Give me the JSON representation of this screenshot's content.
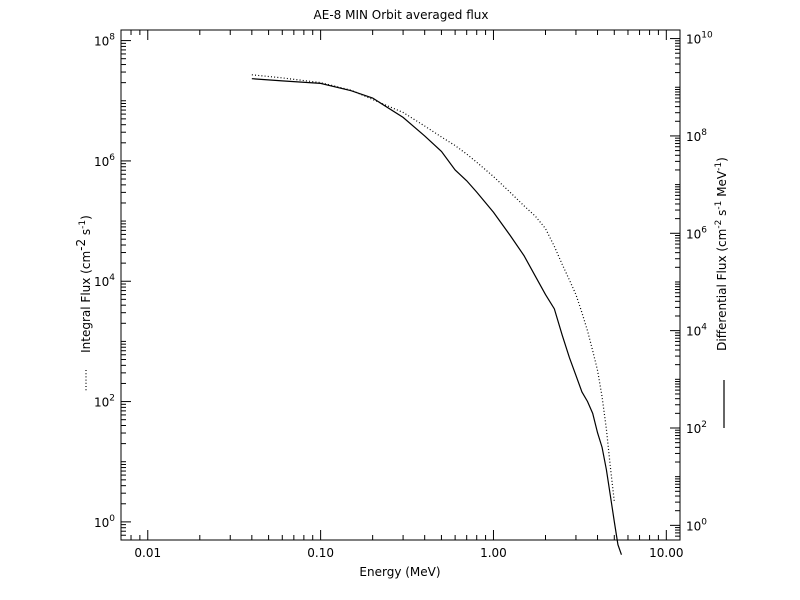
{
  "chart_data": {
    "type": "line",
    "title": "AE-8 MIN Orbit averaged flux",
    "xlabel": "Energy (MeV)",
    "ylabel_left": "Integral Flux (cm",
    "ylabel_left_unit": "-2",
    "ylabel_left_mid": " s",
    "ylabel_left_unit2": "-1",
    "ylabel_left_end": ")",
    "ylabel_right": "Differential Flux (cm",
    "ylabel_right_unit": "-2",
    "ylabel_right_mid": " s",
    "ylabel_right_unit2": "-1",
    "ylabel_right_mid2": " MeV",
    "ylabel_right_unit3": "-1",
    "ylabel_right_end": ")",
    "xscale": "log",
    "yscale_left": "log",
    "yscale_right": "log",
    "xlim": [
      0.007,
      12.0
    ],
    "ylim_left": [
      0.5,
      150000000.0
    ],
    "ylim_right": [
      0.5,
      15000000000.0
    ],
    "x_ticks": [
      {
        "value": 0.01,
        "label": "0.01"
      },
      {
        "value": 0.1,
        "label": "0.10"
      },
      {
        "value": 1,
        "label": "1.00"
      },
      {
        "value": 10,
        "label": "10.00"
      }
    ],
    "y_left_ticks": [
      {
        "value": 1,
        "base": "10",
        "exp": "0"
      },
      {
        "value": 100,
        "base": "10",
        "exp": "2"
      },
      {
        "value": 10000,
        "base": "10",
        "exp": "4"
      },
      {
        "value": 1000000,
        "base": "10",
        "exp": "6"
      },
      {
        "value": 100000000,
        "base": "10",
        "exp": "8"
      }
    ],
    "y_right_ticks": [
      {
        "value": 1,
        "base": "10",
        "exp": "0"
      },
      {
        "value": 100,
        "base": "10",
        "exp": "2"
      },
      {
        "value": 10000,
        "base": "10",
        "exp": "4"
      },
      {
        "value": 1000000,
        "base": "10",
        "exp": "6"
      },
      {
        "value": 100000000,
        "base": "10",
        "exp": "8"
      },
      {
        "value": 10000000000,
        "base": "10",
        "exp": "10"
      }
    ],
    "series": [
      {
        "name": "Integral Flux",
        "axis": "left",
        "style": "dotted",
        "x": [
          0.04,
          0.06,
          0.1,
          0.15,
          0.2,
          0.3,
          0.4,
          0.5,
          0.6,
          0.7,
          0.8,
          1.0,
          1.25,
          1.5,
          1.75,
          2.0,
          2.25,
          2.5,
          2.75,
          3.0,
          3.25,
          3.5,
          3.75,
          4.0,
          4.25,
          4.5,
          4.75,
          5.0
        ],
        "y": [
          27000000,
          24000000,
          20000000,
          15000000,
          10500000,
          6400000,
          3800000,
          2500000,
          1800000,
          1300000,
          950000,
          550000,
          300000,
          180000,
          120000,
          75000,
          38000,
          19000,
          10500,
          6000,
          3000,
          1500,
          700,
          330,
          120,
          35,
          8,
          2.2
        ]
      },
      {
        "name": "Differential Flux",
        "axis": "right",
        "style": "solid",
        "x": [
          0.04,
          0.06,
          0.1,
          0.15,
          0.2,
          0.3,
          0.4,
          0.5,
          0.6,
          0.7,
          0.8,
          1.0,
          1.25,
          1.5,
          1.75,
          2.0,
          2.25,
          2.5,
          2.75,
          3.0,
          3.25,
          3.5,
          3.75,
          4.0,
          4.25,
          4.5,
          4.75,
          5.0,
          5.25,
          5.5
        ],
        "y": [
          1500000000,
          1350000000,
          1200000000,
          850000000,
          600000000,
          240000000,
          100000000,
          48000000,
          20000000,
          12000000,
          7000000,
          2700000,
          900000,
          350000,
          130000,
          55000,
          28000,
          8000,
          2800,
          1200,
          550,
          350,
          200,
          80,
          40,
          14,
          4,
          1.2,
          0.4,
          0.25
        ]
      }
    ],
    "legend": [
      {
        "series": "Integral Flux",
        "style": "dotted",
        "position": "left-axis"
      },
      {
        "series": "Differential Flux",
        "style": "solid",
        "position": "right-axis"
      }
    ],
    "grid": false
  }
}
